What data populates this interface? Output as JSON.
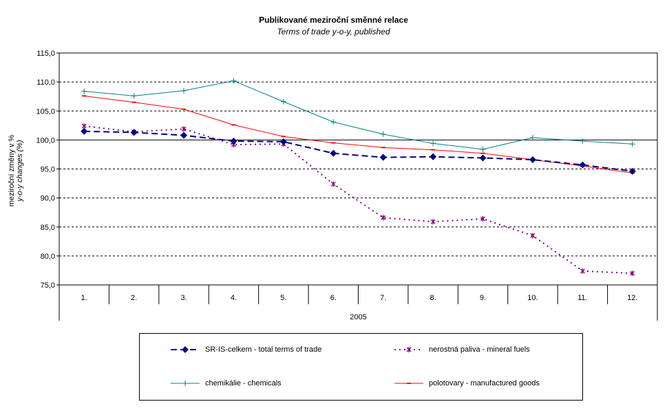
{
  "chart_data": {
    "type": "line",
    "title": "Publikované meziroční směnné relace",
    "subtitle": "Terms of trade y-o-y, published",
    "ylabel": "meziroční změny v %",
    "ylabel2": "y-o-y changes (%)",
    "xlabel": "2005",
    "categories": [
      "1.",
      "2.",
      "3.",
      "4.",
      "5.",
      "6.",
      "7.",
      "8.",
      "9.",
      "10.",
      "11.",
      "12."
    ],
    "ylim": [
      75,
      115
    ],
    "yticks": [
      "75,0",
      "80,0",
      "85,0",
      "90,0",
      "95,0",
      "100,0",
      "105,0",
      "110,0",
      "115,0"
    ],
    "grid": true,
    "legend_position": "bottom",
    "series": [
      {
        "name": "SR-IS-celkem - total terms of trade",
        "color": "#000080",
        "style": "dashed",
        "marker": "diamond",
        "values": [
          101.5,
          101.3,
          100.8,
          99.8,
          99.7,
          97.7,
          97.0,
          97.1,
          96.9,
          96.6,
          95.7,
          94.6
        ]
      },
      {
        "name": "nerostná paliva - mineral fuels",
        "color": "#800080",
        "style": "dotted",
        "marker": "star",
        "values": [
          102.4,
          101.4,
          101.9,
          99.2,
          99.3,
          92.4,
          86.6,
          85.9,
          86.4,
          83.5,
          77.4,
          77.0
        ]
      },
      {
        "name": "chemikálie - chemicals",
        "color": "#008080",
        "style": "solid",
        "marker": "plus",
        "values": [
          108.4,
          107.6,
          108.5,
          110.2,
          106.6,
          103.1,
          101.0,
          99.4,
          98.4,
          100.4,
          99.8,
          99.3
        ]
      },
      {
        "name": "polotovary - manufactured goods",
        "color": "#ff0000",
        "style": "solid",
        "marker": "dash",
        "values": [
          107.6,
          106.5,
          105.3,
          102.6,
          100.6,
          99.5,
          98.7,
          98.3,
          97.7,
          96.6,
          95.5,
          94.3
        ]
      }
    ]
  }
}
